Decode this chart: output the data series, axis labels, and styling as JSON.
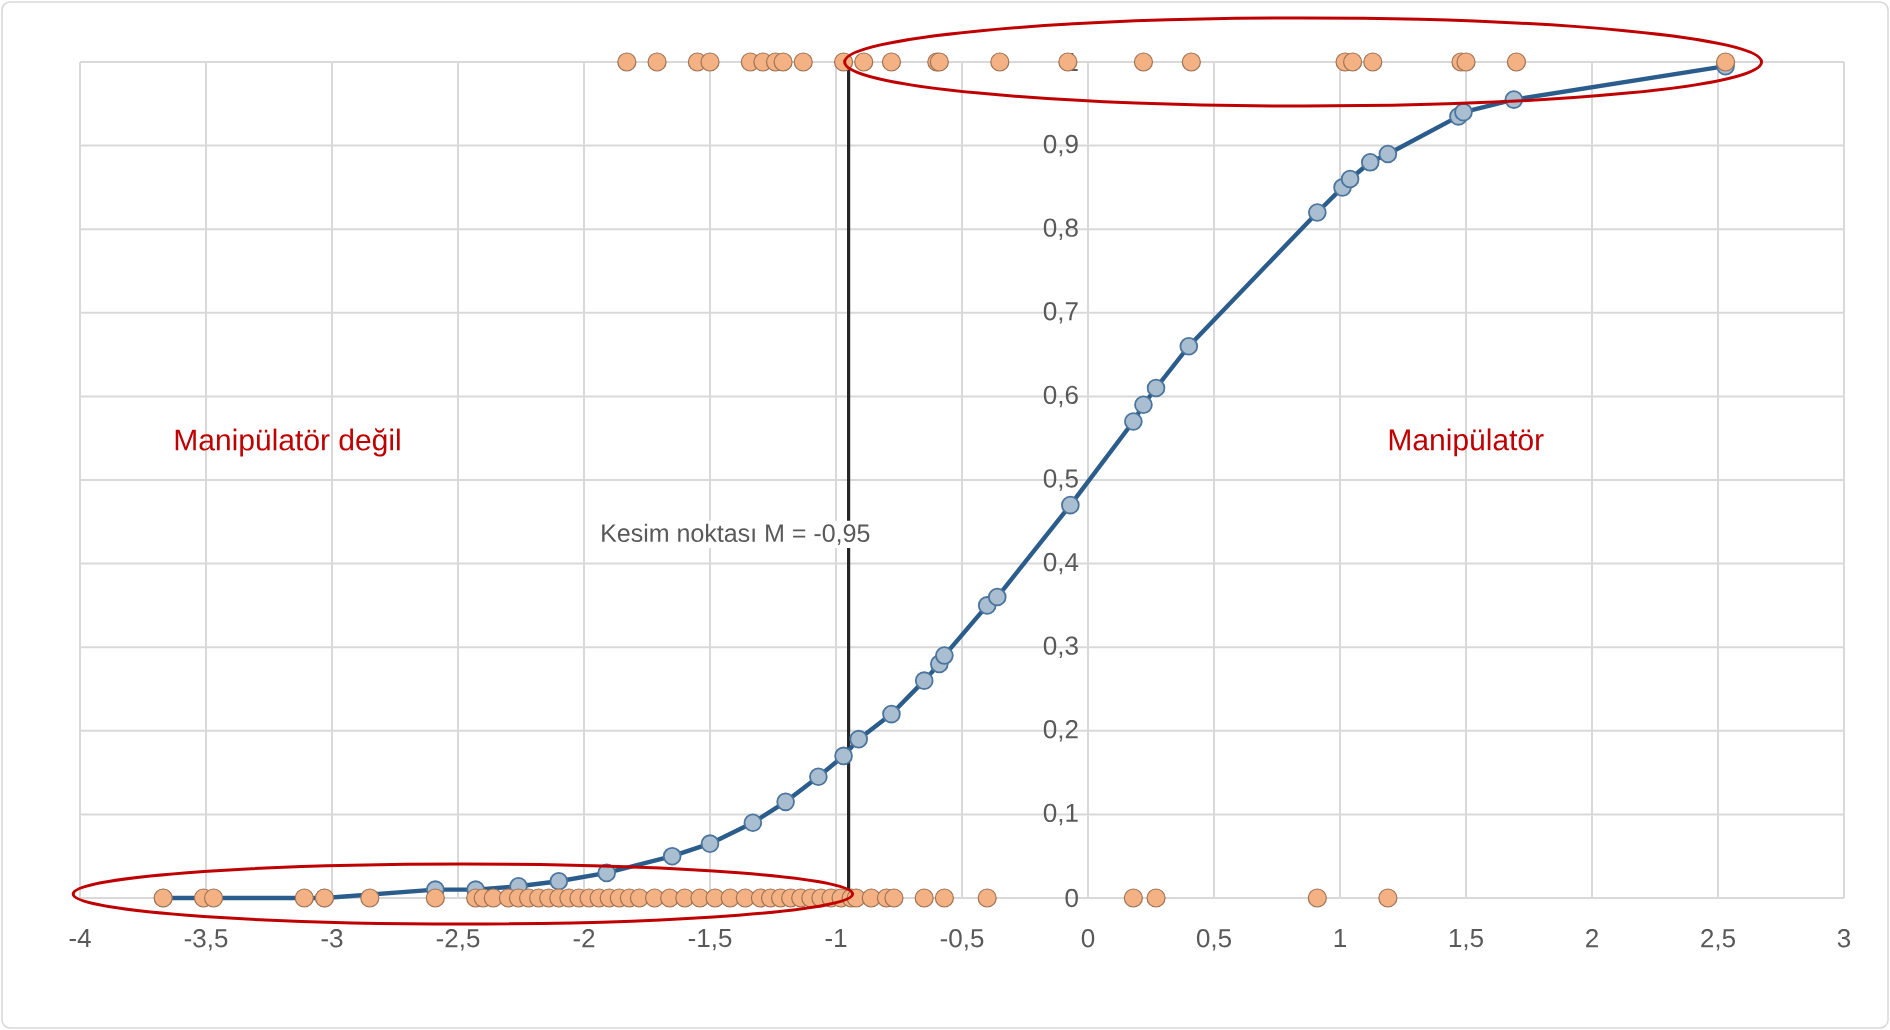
{
  "chart_data": {
    "type": "scatter",
    "series": [
      {
        "color": "#f4b183",
        "x": [
          -1.83,
          -1.71,
          -1.55,
          -1.5,
          -1.34,
          -1.29,
          -1.24,
          -1.21,
          -1.13,
          -0.97,
          -0.89,
          -0.78,
          -0.6,
          -0.59,
          -0.35,
          -0.08,
          0.22,
          0.41,
          1.02,
          1.05,
          1.13,
          1.48,
          1.5,
          1.7,
          2.53,
          -3.67,
          -3.51,
          -3.47,
          -3.11,
          -3.03,
          -2.85,
          -2.59,
          -2.43,
          -2.4,
          -2.36,
          -2.3,
          -2.26,
          -2.22,
          -2.18,
          -2.14,
          -2.1,
          -2.06,
          -2.02,
          -1.98,
          -1.94,
          -1.9,
          -1.86,
          -1.82,
          -1.78,
          -1.72,
          -1.66,
          -1.6,
          -1.54,
          -1.48,
          -1.42,
          -1.36,
          -1.3,
          -1.26,
          -1.22,
          -1.18,
          -1.14,
          -1.1,
          -1.06,
          -1.02,
          -0.98,
          -0.94,
          -0.92,
          -0.86,
          -0.8,
          -0.77,
          -0.65,
          -0.57,
          -0.4,
          0.18,
          0.27,
          0.91,
          1.19
        ],
        "values": [
          1,
          1,
          1,
          1,
          1,
          1,
          1,
          1,
          1,
          1,
          1,
          1,
          1,
          1,
          1,
          1,
          1,
          1,
          1,
          1,
          1,
          1,
          1,
          1,
          1,
          0,
          0,
          0,
          0,
          0,
          0,
          0,
          0,
          0,
          0,
          0,
          0,
          0,
          0,
          0,
          0,
          0,
          0,
          0,
          0,
          0,
          0,
          0,
          0,
          0,
          0,
          0,
          0,
          0,
          0,
          0,
          0,
          0,
          0,
          0,
          0,
          0,
          0,
          0,
          0,
          0,
          0,
          0,
          0,
          0,
          0,
          0,
          0,
          0,
          0,
          0,
          0
        ]
      },
      {
        "type": "line",
        "color": "#2b5d8c",
        "x": [
          -3.67,
          -3.03,
          -2.59,
          -2.43,
          -2.26,
          -2.1,
          -1.91,
          -1.65,
          -1.5,
          -1.33,
          -1.2,
          -1.07,
          -0.97,
          -0.91,
          -0.78,
          -0.65,
          -0.59,
          -0.57,
          -0.4,
          -0.36,
          -0.07,
          0.18,
          0.22,
          0.27,
          0.4,
          0.91,
          1.01,
          1.04,
          1.12,
          1.19,
          1.47,
          1.49,
          1.69,
          2.53
        ],
        "values": [
          0.0,
          0.0,
          0.01,
          0.01,
          0.014,
          0.02,
          0.03,
          0.05,
          0.065,
          0.09,
          0.115,
          0.145,
          0.17,
          0.19,
          0.22,
          0.26,
          0.28,
          0.29,
          0.35,
          0.36,
          0.47,
          0.57,
          0.59,
          0.61,
          0.66,
          0.82,
          0.85,
          0.86,
          0.88,
          0.89,
          0.935,
          0.94,
          0.955,
          0.995
        ]
      }
    ],
    "marker": "circle",
    "xlim": [
      -4,
      3
    ],
    "xticks": [
      -4,
      {
        "value": -3.5,
        "label": "-3,5"
      },
      -3,
      {
        "value": -2.5,
        "label": "-2,5"
      },
      -2,
      {
        "value": -1.5,
        "label": "-1,5"
      },
      -1,
      {
        "value": -0.5,
        "label": "-0,5"
      },
      0,
      {
        "value": 0.5,
        "label": "0,5"
      },
      1,
      {
        "value": 1.5,
        "label": "1,5"
      },
      2,
      {
        "value": 2.5,
        "label": "2,5"
      },
      3
    ],
    "ylim": [
      0,
      1
    ],
    "yticks": [
      0,
      {
        "value": 0.1,
        "label": "0,1"
      },
      {
        "value": 0.2,
        "label": "0,2"
      },
      {
        "value": 0.3,
        "label": "0,3"
      },
      {
        "value": 0.4,
        "label": "0,4"
      },
      {
        "value": 0.5,
        "label": "0,5"
      },
      {
        "value": 0.6,
        "label": "0,6"
      },
      {
        "value": 0.7,
        "label": "0,7"
      },
      {
        "value": 0.8,
        "label": "0,8"
      },
      {
        "value": 0.9,
        "label": "0,9"
      },
      1
    ],
    "grid": true,
    "ref_lines": [
      {
        "axis": "x",
        "value": -0.95,
        "label": "Kesim noktası M  =   -0,95",
        "color": "#262626"
      }
    ],
    "annotations": [
      "Manipülatör değil",
      "Manipülatör"
    ]
  }
}
